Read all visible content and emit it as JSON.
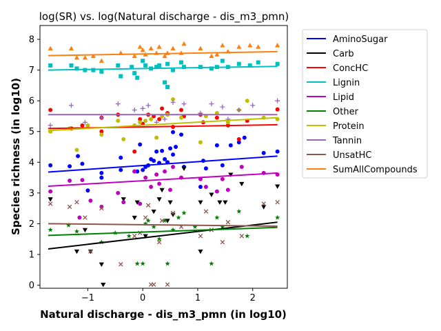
{
  "chart_data": {
    "type": "scatter",
    "title": "log(SR) vs. log(Natural discharge - dis_m3_pmn)",
    "xlabel": "Natural discharge - dis_m3_pmn (in log10)",
    "ylabel": "Species richness (in log10)",
    "xlim": [
      -1.87,
      2.63
    ],
    "ylim": [
      -0.1,
      8.45
    ],
    "x_ticks": [
      -1,
      0,
      1,
      2
    ],
    "y_ticks": [
      0,
      1,
      2,
      3,
      4,
      5,
      6,
      7,
      8
    ],
    "x_tick_labels": [
      "−1",
      "0",
      "1",
      "2"
    ],
    "y_tick_labels": [
      "0",
      "1",
      "2",
      "3",
      "4",
      "5",
      "6",
      "7",
      "8"
    ],
    "grid": false,
    "legend_position": "outside-right",
    "series": [
      {
        "name": "AminoSugar",
        "color": "#0000ff",
        "marker": "circle",
        "fit": [
          [
            -1.72,
            3.68
          ],
          [
            2.45,
            4.2
          ]
        ],
        "points": [
          [
            -1.68,
            3.9
          ],
          [
            -1.33,
            3.87
          ],
          [
            -1.18,
            4.2
          ],
          [
            -1.1,
            3.95
          ],
          [
            -1.0,
            3.08
          ],
          [
            -0.75,
            3.5
          ],
          [
            -0.75,
            3.65
          ],
          [
            -0.4,
            3.75
          ],
          [
            -0.4,
            4.15
          ],
          [
            -0.15,
            3.7
          ],
          [
            -0.1,
            3.7
          ],
          [
            -0.05,
            4.58
          ],
          [
            0.0,
            3.75
          ],
          [
            0.05,
            3.85
          ],
          [
            0.1,
            3.9
          ],
          [
            0.15,
            4.1
          ],
          [
            0.2,
            4.05
          ],
          [
            0.25,
            4.35
          ],
          [
            0.3,
            3.98
          ],
          [
            0.35,
            4.37
          ],
          [
            0.4,
            4.1
          ],
          [
            0.45,
            4.0
          ],
          [
            0.5,
            4.45
          ],
          [
            0.55,
            4.25
          ],
          [
            0.6,
            4.5
          ],
          [
            0.7,
            4.9
          ],
          [
            0.75,
            3.85
          ],
          [
            0.55,
            4.98
          ],
          [
            1.05,
            3.2
          ],
          [
            1.1,
            4.05
          ],
          [
            1.15,
            3.8
          ],
          [
            1.35,
            4.55
          ],
          [
            1.45,
            3.9
          ],
          [
            1.6,
            4.55
          ],
          [
            1.75,
            4.65
          ],
          [
            1.85,
            4.8
          ],
          [
            2.2,
            4.3
          ],
          [
            2.45,
            4.35
          ]
        ]
      },
      {
        "name": "Carb",
        "color": "#000000",
        "marker": "triangle-down",
        "fit": [
          [
            -1.72,
            1.18
          ],
          [
            2.45,
            2.05
          ]
        ],
        "points": [
          [
            -1.68,
            2.8
          ],
          [
            -1.2,
            1.1
          ],
          [
            -1.05,
            1.8
          ],
          [
            -0.95,
            1.1
          ],
          [
            -0.75,
            0.68
          ],
          [
            -0.72,
            0.02
          ],
          [
            -0.35,
            2.8
          ],
          [
            -0.15,
            2.2
          ],
          [
            -0.1,
            2.7
          ],
          [
            0.05,
            1.6
          ],
          [
            0.2,
            2.4
          ],
          [
            0.3,
            2.8
          ],
          [
            0.35,
            3.1
          ],
          [
            0.45,
            2.1
          ],
          [
            0.5,
            2.7
          ],
          [
            0.55,
            2.3
          ],
          [
            0.75,
            3.8
          ],
          [
            1.05,
            1.1
          ],
          [
            1.05,
            2.7
          ],
          [
            1.25,
            2.95
          ],
          [
            1.4,
            2.7
          ],
          [
            1.5,
            2.7
          ],
          [
            1.6,
            3.6
          ],
          [
            1.8,
            3.3
          ],
          [
            2.2,
            2.55
          ],
          [
            2.45,
            3.22
          ]
        ]
      },
      {
        "name": "ConcHC",
        "color": "#ff0000",
        "marker": "circle",
        "fit": [
          [
            -1.72,
            5.1
          ],
          [
            2.45,
            5.22
          ]
        ],
        "points": [
          [
            -1.68,
            5.7
          ],
          [
            -1.3,
            5.1
          ],
          [
            -1.1,
            5.2
          ],
          [
            -0.75,
            5.45
          ],
          [
            -0.75,
            5.0
          ],
          [
            -0.45,
            5.55
          ],
          [
            -0.15,
            4.35
          ],
          [
            -0.05,
            5.4
          ],
          [
            0.0,
            5.25
          ],
          [
            0.1,
            5.55
          ],
          [
            0.2,
            5.5
          ],
          [
            0.3,
            5.4
          ],
          [
            0.35,
            5.75
          ],
          [
            0.45,
            5.6
          ],
          [
            0.55,
            5.15
          ],
          [
            0.7,
            5.7
          ],
          [
            0.75,
            5.5
          ],
          [
            1.05,
            5.55
          ],
          [
            1.1,
            5.3
          ],
          [
            1.35,
            5.45
          ],
          [
            1.55,
            5.2
          ],
          [
            1.75,
            4.75
          ],
          [
            1.9,
            5.35
          ],
          [
            2.45,
            5.72
          ]
        ]
      },
      {
        "name": "Lignin",
        "color": "#00bfbf",
        "marker": "square",
        "fit": [
          [
            -1.72,
            7.0
          ],
          [
            2.45,
            7.12
          ]
        ],
        "points": [
          [
            -1.68,
            7.15
          ],
          [
            -1.3,
            7.15
          ],
          [
            -1.2,
            7.05
          ],
          [
            -1.05,
            7.0
          ],
          [
            -0.9,
            7.0
          ],
          [
            -0.75,
            6.95
          ],
          [
            -0.45,
            7.15
          ],
          [
            -0.4,
            6.8
          ],
          [
            -0.2,
            7.1
          ],
          [
            -0.15,
            6.9
          ],
          [
            -0.1,
            6.75
          ],
          [
            0.0,
            7.3
          ],
          [
            0.05,
            7.15
          ],
          [
            0.15,
            7.05
          ],
          [
            0.25,
            7.1
          ],
          [
            0.3,
            7.15
          ],
          [
            0.4,
            6.6
          ],
          [
            0.45,
            7.2
          ],
          [
            0.45,
            6.45
          ],
          [
            0.55,
            7.0
          ],
          [
            0.7,
            7.25
          ],
          [
            0.75,
            7.1
          ],
          [
            1.05,
            7.1
          ],
          [
            1.25,
            7.05
          ],
          [
            1.35,
            7.1
          ],
          [
            1.45,
            7.3
          ],
          [
            1.55,
            7.1
          ],
          [
            1.75,
            7.2
          ],
          [
            1.95,
            7.15
          ],
          [
            2.1,
            7.25
          ],
          [
            2.45,
            7.2
          ]
        ]
      },
      {
        "name": "Lipid",
        "color": "#bf00bf",
        "marker": "circle",
        "fit": [
          [
            -1.72,
            3.22
          ],
          [
            2.45,
            3.65
          ]
        ],
        "points": [
          [
            -1.68,
            3.05
          ],
          [
            -1.33,
            3.4
          ],
          [
            -1.15,
            2.2
          ],
          [
            -1.1,
            3.42
          ],
          [
            -0.95,
            2.75
          ],
          [
            -0.75,
            2.55
          ],
          [
            -0.45,
            3.0
          ],
          [
            -0.35,
            2.7
          ],
          [
            -0.15,
            3.7
          ],
          [
            -0.05,
            2.65
          ],
          [
            0.05,
            3.5
          ],
          [
            0.15,
            3.2
          ],
          [
            0.25,
            3.6
          ],
          [
            0.3,
            3.3
          ],
          [
            0.4,
            3.7
          ],
          [
            0.5,
            3.1
          ],
          [
            0.55,
            3.85
          ],
          [
            0.7,
            3.5
          ],
          [
            1.05,
            3.45
          ],
          [
            1.15,
            3.2
          ],
          [
            1.35,
            3.05
          ],
          [
            1.45,
            3.45
          ],
          [
            1.55,
            3.1
          ],
          [
            1.8,
            3.85
          ],
          [
            2.2,
            3.65
          ],
          [
            2.45,
            3.6
          ]
        ]
      },
      {
        "name": "Other",
        "color": "#007f00",
        "marker": "star",
        "fit": [
          [
            -1.72,
            1.62
          ],
          [
            2.45,
            1.88
          ]
        ],
        "points": [
          [
            -1.68,
            1.8
          ],
          [
            -1.35,
            1.95
          ],
          [
            -1.2,
            1.75
          ],
          [
            -0.75,
            1.4
          ],
          [
            -0.5,
            1.7
          ],
          [
            -0.25,
            1.6
          ],
          [
            -0.1,
            0.7
          ],
          [
            0.0,
            0.7
          ],
          [
            0.05,
            2.0
          ],
          [
            0.1,
            2.1
          ],
          [
            0.2,
            1.9
          ],
          [
            0.3,
            1.5
          ],
          [
            0.4,
            2.1
          ],
          [
            0.45,
            0.7
          ],
          [
            0.55,
            1.8
          ],
          [
            0.65,
            2.2
          ],
          [
            0.75,
            2.35
          ],
          [
            0.95,
            1.9
          ],
          [
            1.25,
            0.7
          ],
          [
            1.35,
            2.2
          ],
          [
            1.45,
            1.9
          ],
          [
            1.75,
            2.4
          ],
          [
            1.9,
            1.6
          ],
          [
            2.45,
            2.2
          ]
        ]
      },
      {
        "name": "Protein",
        "color": "#bfbf00",
        "marker": "circle",
        "fit": [
          [
            -1.72,
            5.03
          ],
          [
            2.45,
            5.45
          ]
        ],
        "points": [
          [
            -1.68,
            5.0
          ],
          [
            -1.33,
            5.1
          ],
          [
            -1.2,
            4.4
          ],
          [
            -1.0,
            5.2
          ],
          [
            -0.75,
            4.9
          ],
          [
            -0.45,
            5.35
          ],
          [
            -0.35,
            4.75
          ],
          [
            -0.15,
            5.2
          ],
          [
            -0.05,
            5.3
          ],
          [
            0.05,
            5.35
          ],
          [
            0.15,
            5.4
          ],
          [
            0.25,
            4.8
          ],
          [
            0.35,
            5.5
          ],
          [
            0.45,
            5.55
          ],
          [
            0.55,
            6.05
          ],
          [
            0.7,
            5.45
          ],
          [
            1.05,
            4.65
          ],
          [
            1.15,
            5.5
          ],
          [
            1.35,
            5.6
          ],
          [
            1.55,
            5.3
          ],
          [
            1.75,
            5.7
          ],
          [
            1.9,
            6.0
          ],
          [
            2.2,
            5.45
          ],
          [
            2.45,
            5.4
          ]
        ]
      },
      {
        "name": "Tannin",
        "color": "#9467bd",
        "marker": "plus",
        "fit": [
          [
            -1.72,
            5.55
          ],
          [
            2.45,
            5.55
          ]
        ],
        "points": [
          [
            -1.68,
            5.2
          ],
          [
            -1.3,
            5.85
          ],
          [
            -1.05,
            5.3
          ],
          [
            -0.75,
            5.45
          ],
          [
            -0.45,
            5.9
          ],
          [
            -0.15,
            5.7
          ],
          [
            0.0,
            5.75
          ],
          [
            0.1,
            5.85
          ],
          [
            0.25,
            5.3
          ],
          [
            0.4,
            5.4
          ],
          [
            0.55,
            5.95
          ],
          [
            0.75,
            5.9
          ],
          [
            1.05,
            5.6
          ],
          [
            1.25,
            5.9
          ],
          [
            1.45,
            5.8
          ],
          [
            1.55,
            5.4
          ],
          [
            1.75,
            5.7
          ],
          [
            2.0,
            5.85
          ],
          [
            2.45,
            6.0
          ]
        ]
      },
      {
        "name": "UnsatHC",
        "color": "#8c564b",
        "marker": "x",
        "fit": [
          [
            -1.72,
            2.0
          ],
          [
            2.45,
            1.92
          ]
        ],
        "points": [
          [
            -1.68,
            2.65
          ],
          [
            -1.33,
            2.55
          ],
          [
            -1.2,
            2.7
          ],
          [
            -1.05,
            2.2
          ],
          [
            -0.95,
            1.1
          ],
          [
            -0.75,
            2.5
          ],
          [
            -0.4,
            0.68
          ],
          [
            -0.15,
            1.6
          ],
          [
            -0.05,
            1.7
          ],
          [
            0.05,
            2.2
          ],
          [
            0.1,
            2.6
          ],
          [
            0.15,
            0.02
          ],
          [
            0.2,
            0.02
          ],
          [
            0.3,
            1.4
          ],
          [
            0.35,
            2.1
          ],
          [
            0.45,
            0.02
          ],
          [
            0.55,
            2.35
          ],
          [
            0.7,
            1.9
          ],
          [
            1.05,
            1.6
          ],
          [
            1.15,
            2.4
          ],
          [
            1.25,
            1.8
          ],
          [
            1.45,
            1.4
          ],
          [
            1.55,
            2.05
          ],
          [
            1.8,
            1.6
          ],
          [
            2.2,
            2.65
          ],
          [
            2.45,
            2.7
          ]
        ]
      },
      {
        "name": "SumAllCompounds",
        "color": "#ff7f0e",
        "marker": "triangle-up",
        "fit": [
          [
            -1.72,
            7.47
          ],
          [
            2.45,
            7.6
          ]
        ],
        "points": [
          [
            -1.68,
            7.7
          ],
          [
            -1.3,
            7.7
          ],
          [
            -1.2,
            7.4
          ],
          [
            -1.05,
            7.4
          ],
          [
            -0.9,
            7.45
          ],
          [
            -0.75,
            7.3
          ],
          [
            -0.4,
            7.55
          ],
          [
            -0.15,
            7.45
          ],
          [
            -0.05,
            7.75
          ],
          [
            0.0,
            7.65
          ],
          [
            0.05,
            7.5
          ],
          [
            0.15,
            7.7
          ],
          [
            0.25,
            7.55
          ],
          [
            0.3,
            7.75
          ],
          [
            0.4,
            7.45
          ],
          [
            0.45,
            7.55
          ],
          [
            0.55,
            7.7
          ],
          [
            0.7,
            7.55
          ],
          [
            0.75,
            7.85
          ],
          [
            1.05,
            7.7
          ],
          [
            1.25,
            7.45
          ],
          [
            1.35,
            7.5
          ],
          [
            1.45,
            7.8
          ],
          [
            1.55,
            7.6
          ],
          [
            1.75,
            7.75
          ],
          [
            1.95,
            7.8
          ],
          [
            2.1,
            7.75
          ],
          [
            2.45,
            7.8
          ]
        ]
      }
    ]
  }
}
